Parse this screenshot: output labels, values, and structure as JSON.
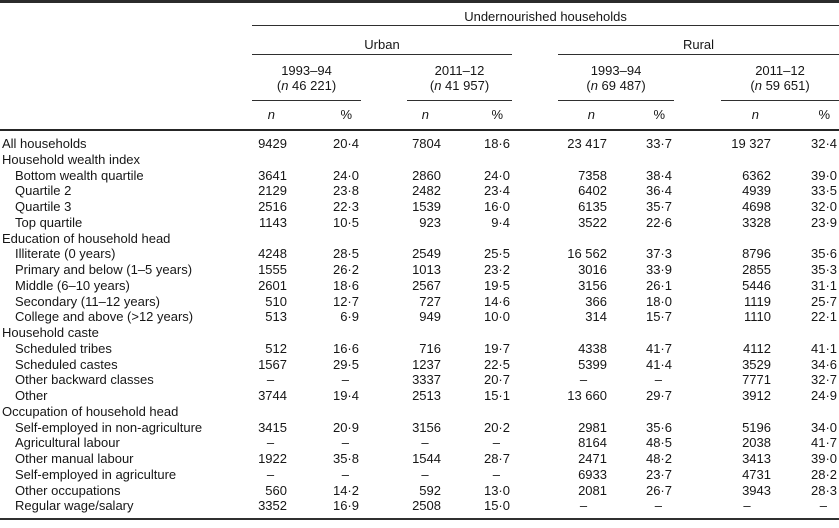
{
  "table": {
    "title": "Undernourished households",
    "symbol_n": "n",
    "symbol_pct": "%",
    "punct": {
      "open": "(",
      "close": ")"
    },
    "groups": [
      {
        "region": "Urban",
        "periods": [
          {
            "years": "1993–94",
            "n": "46 221"
          },
          {
            "years": "2011–12",
            "n": "41 957"
          }
        ]
      },
      {
        "region": "Rural",
        "periods": [
          {
            "years": "1993–94",
            "n": "69 487"
          },
          {
            "years": "2011–12",
            "n": "59 651"
          }
        ]
      }
    ],
    "rows": [
      {
        "label": "All households",
        "indent": false,
        "values": [
          "9429",
          "20·4",
          "7804",
          "18·6",
          "23 417",
          "33·7",
          "19 327",
          "32·4"
        ]
      },
      {
        "label": "Household wealth index",
        "indent": false,
        "section": true
      },
      {
        "label": "Bottom wealth quartile",
        "indent": true,
        "values": [
          "3641",
          "24·0",
          "2860",
          "24·0",
          "7358",
          "38·4",
          "6362",
          "39·0"
        ]
      },
      {
        "label": "Quartile 2",
        "indent": true,
        "values": [
          "2129",
          "23·8",
          "2482",
          "23·4",
          "6402",
          "36·4",
          "4939",
          "33·5"
        ]
      },
      {
        "label": "Quartile 3",
        "indent": true,
        "values": [
          "2516",
          "22·3",
          "1539",
          "16·0",
          "6135",
          "35·7",
          "4698",
          "32·0"
        ]
      },
      {
        "label": "Top quartile",
        "indent": true,
        "values": [
          "1143",
          "10·5",
          "923",
          "9·4",
          "3522",
          "22·6",
          "3328",
          "23·9"
        ]
      },
      {
        "label": "Education of household head",
        "indent": false,
        "section": true
      },
      {
        "label": "Illiterate (0 years)",
        "indent": true,
        "values": [
          "4248",
          "28·5",
          "2549",
          "25·5",
          "16 562",
          "37·3",
          "8796",
          "35·6"
        ]
      },
      {
        "label": "Primary and below (1–5 years)",
        "indent": true,
        "values": [
          "1555",
          "26·2",
          "1013",
          "23·2",
          "3016",
          "33·9",
          "2855",
          "35·3"
        ]
      },
      {
        "label": "Middle (6–10 years)",
        "indent": true,
        "values": [
          "2601",
          "18·6",
          "2567",
          "19·5",
          "3156",
          "26·1",
          "5446",
          "31·1"
        ]
      },
      {
        "label": "Secondary (11–12 years)",
        "indent": true,
        "values": [
          "510",
          "12·7",
          "727",
          "14·6",
          "366",
          "18·0",
          "1119",
          "25·7"
        ]
      },
      {
        "label": "College and above (>12 years)",
        "indent": true,
        "values": [
          "513",
          "6·9",
          "949",
          "10·0",
          "314",
          "15·7",
          "1110",
          "22·1"
        ]
      },
      {
        "label": "Household caste",
        "indent": false,
        "section": true
      },
      {
        "label": "Scheduled tribes",
        "indent": true,
        "values": [
          "512",
          "16·6",
          "716",
          "19·7",
          "4338",
          "41·7",
          "4112",
          "41·1"
        ]
      },
      {
        "label": "Scheduled castes",
        "indent": true,
        "values": [
          "1567",
          "29·5",
          "1237",
          "22·5",
          "5399",
          "41·4",
          "3529",
          "34·6"
        ]
      },
      {
        "label": "Other backward classes",
        "indent": true,
        "values": [
          "–",
          "–",
          "3337",
          "20·7",
          "–",
          "–",
          "7771",
          "32·7"
        ]
      },
      {
        "label": "Other",
        "indent": true,
        "values": [
          "3744",
          "19·4",
          "2513",
          "15·1",
          "13 660",
          "29·7",
          "3912",
          "24·9"
        ]
      },
      {
        "label": "Occupation of household head",
        "indent": false,
        "section": true
      },
      {
        "label": "Self-employed in non-agriculture",
        "indent": true,
        "values": [
          "3415",
          "20·9",
          "3156",
          "20·2",
          "2981",
          "35·6",
          "5196",
          "34·0"
        ]
      },
      {
        "label": "Agricultural labour",
        "indent": true,
        "values": [
          "–",
          "–",
          "–",
          "–",
          "8164",
          "48·5",
          "2038",
          "41·7"
        ]
      },
      {
        "label": "Other manual labour",
        "indent": true,
        "values": [
          "1922",
          "35·8",
          "1544",
          "28·7",
          "2471",
          "48·2",
          "3413",
          "39·0"
        ]
      },
      {
        "label": "Self-employed in agriculture",
        "indent": true,
        "values": [
          "–",
          "–",
          "–",
          "–",
          "6933",
          "23·7",
          "4731",
          "28·2"
        ]
      },
      {
        "label": "Other occupations",
        "indent": true,
        "values": [
          "560",
          "14·2",
          "592",
          "13·0",
          "2081",
          "26·7",
          "3943",
          "28·3"
        ]
      },
      {
        "label": "Regular wage/salary",
        "indent": true,
        "values": [
          "3352",
          "16·9",
          "2508",
          "15·0",
          "–",
          "–",
          "–",
          "–"
        ]
      }
    ]
  }
}
